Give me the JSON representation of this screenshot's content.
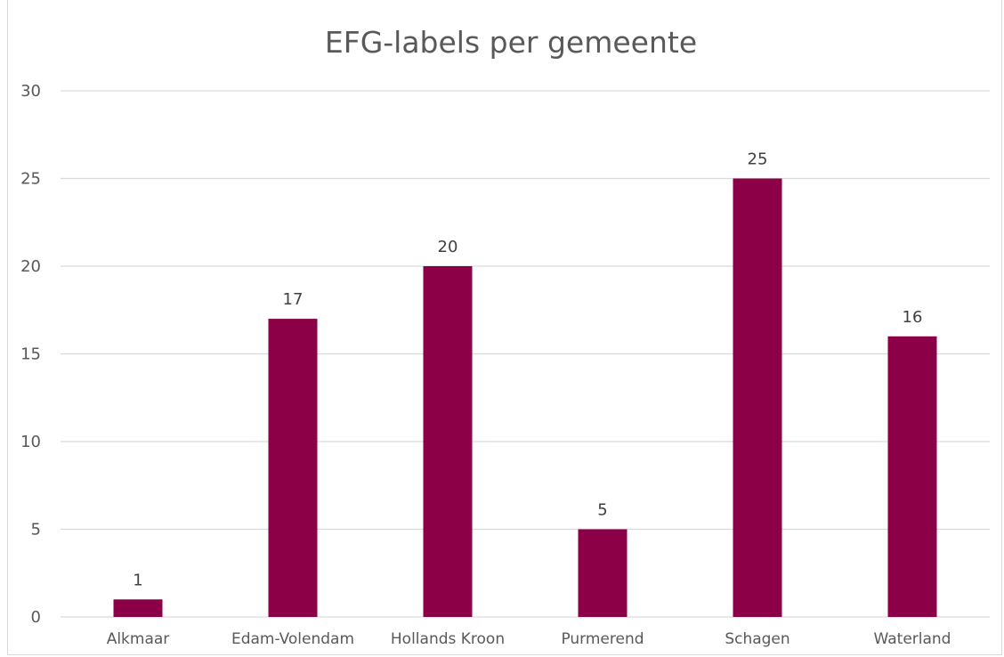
{
  "chart_data": {
    "type": "bar",
    "title": "EFG-labels per gemeente",
    "categories": [
      "Alkmaar",
      "Edam-Volendam",
      "Hollands Kroon",
      "Purmerend",
      "Schagen",
      "Waterland"
    ],
    "series": [
      {
        "values": [
          1,
          17,
          20,
          5,
          25,
          16
        ]
      }
    ],
    "ylim": [
      0,
      30
    ],
    "yticks": [
      0,
      5,
      10,
      15,
      20,
      25,
      30
    ],
    "grid": true,
    "data_labels": true,
    "bar_color": "#8B0046",
    "grid_color": "#d9d9d9",
    "text_color": "#595959"
  }
}
